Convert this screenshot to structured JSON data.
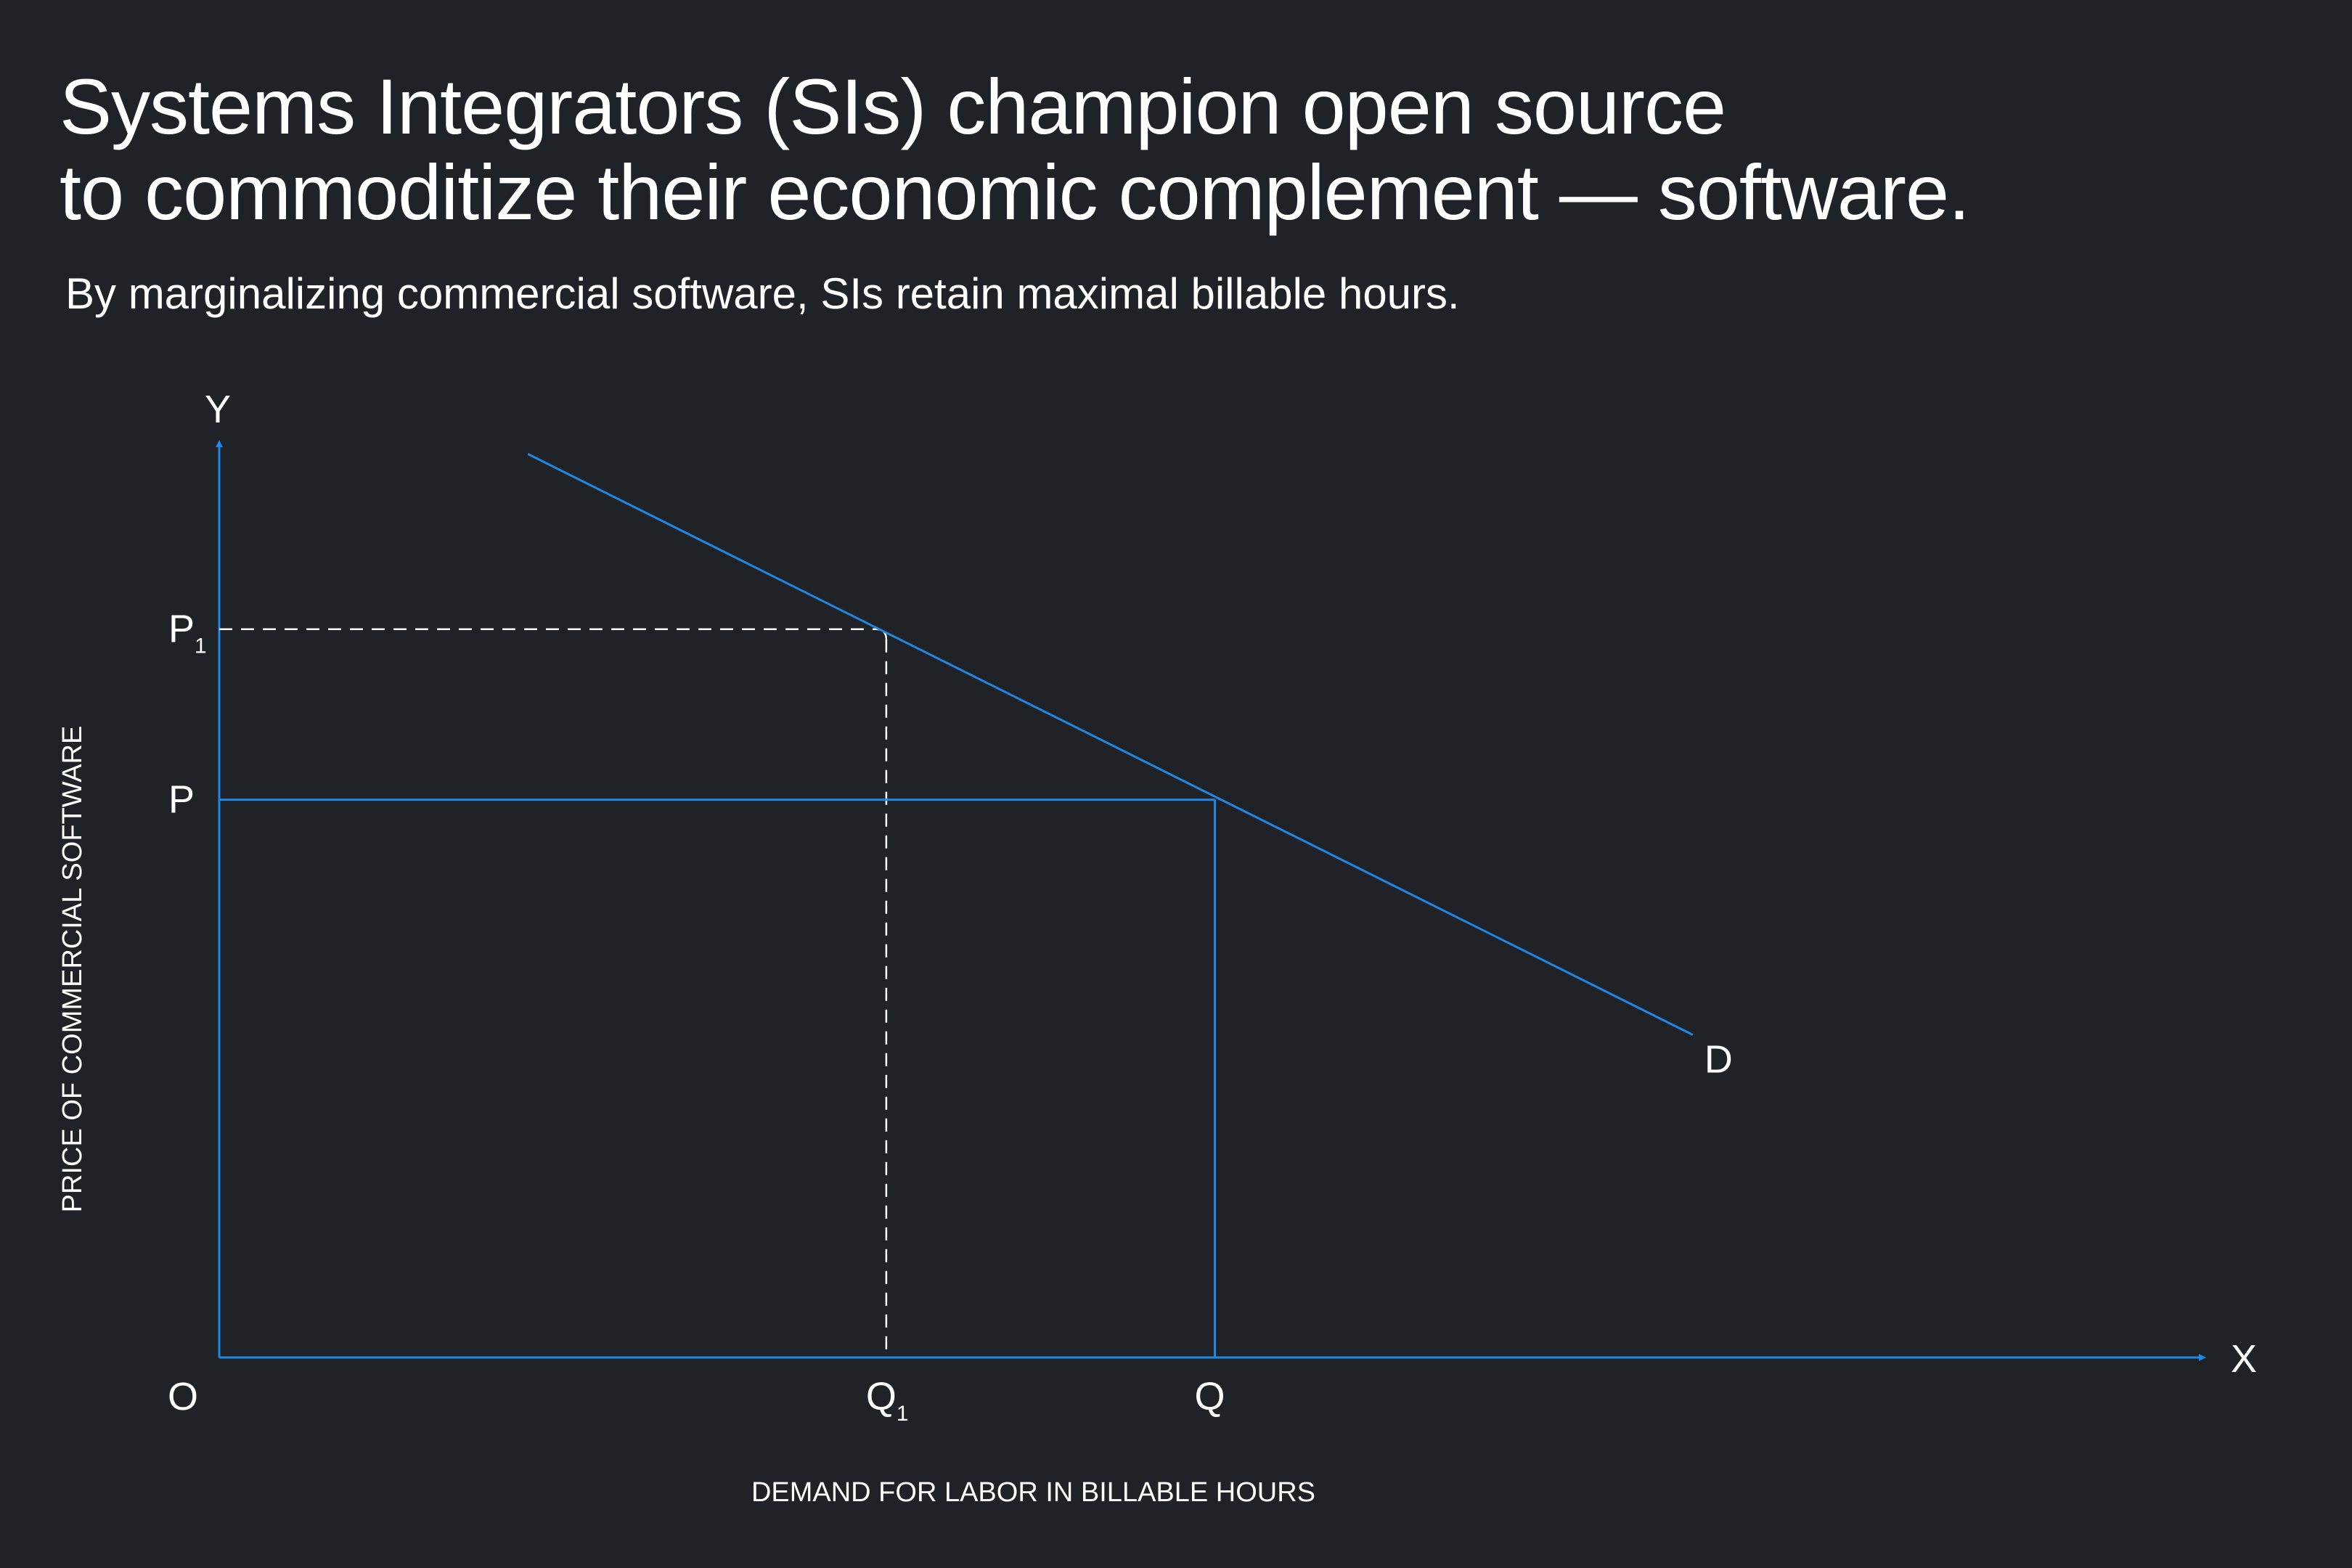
{
  "title_line1": "Systems Integrators (SIs) champion open source",
  "title_line2": "to commoditize their economic complement — software.",
  "subtitle": "By marginalizing commercial software, SIs retain maximal billable hours.",
  "colors": {
    "background": "#1f2226",
    "line": "#1e88e5",
    "dashed": "#ffffff",
    "text": "#ffffff"
  },
  "chart_data": {
    "type": "line",
    "title": "",
    "xlabel": "DEMAND FOR LABOR IN BILLABLE HOURS",
    "ylabel": "PRICE OF COMMERCIAL SOFTWARE",
    "x_axis_name": "X",
    "y_axis_name": "Y",
    "origin_label": "O",
    "xlim": [
      0,
      10
    ],
    "ylim": [
      0,
      10
    ],
    "grid": false,
    "series": [
      {
        "name": "D",
        "points": [
          [
            1.55,
            9.8
          ],
          [
            7.4,
            3.5
          ]
        ]
      }
    ],
    "reference_points": [
      {
        "x_label": "Q",
        "x_sub": "1",
        "y_label": "P",
        "y_sub": "1",
        "x": 3.35,
        "y": 7.9,
        "style": "dashed"
      },
      {
        "x_label": "Q",
        "x_sub": "",
        "y_label": "P",
        "y_sub": "",
        "x": 5.0,
        "y": 6.05,
        "style": "solid"
      }
    ]
  }
}
